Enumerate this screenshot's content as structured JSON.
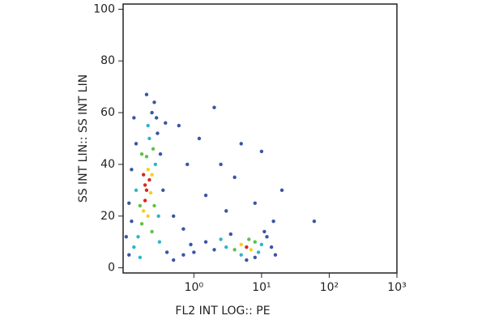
{
  "chart_data": {
    "type": "scatter",
    "xlabel": "FL2 INT LOG:: PE",
    "ylabel": "SS INT LIN:: SS INT LIN",
    "xscale": "log",
    "xlim": [
      0.09,
      1000
    ],
    "ylim": [
      -2,
      102
    ],
    "xticks": [
      {
        "value": 1,
        "label": "10⁰"
      },
      {
        "value": 10,
        "label": "10¹"
      },
      {
        "value": 100,
        "label": "10²"
      },
      {
        "value": 1000,
        "label": "10³"
      }
    ],
    "yticks": [
      0,
      20,
      40,
      60,
      80,
      100
    ],
    "x": [
      0.2,
      0.22,
      0.19,
      0.21,
      0.18,
      0.23,
      0.2,
      0.17,
      0.24,
      0.19,
      0.25,
      0.16,
      0.22,
      0.15,
      0.27,
      0.14,
      0.21,
      0.13,
      0.29,
      0.12,
      0.24,
      0.11,
      0.32,
      0.12,
      0.26,
      0.1,
      0.35,
      0.14,
      0.3,
      0.17,
      0.26,
      0.18,
      0.21,
      0.16,
      0.4,
      0.5,
      0.7,
      0.28,
      0.2,
      0.13,
      0.11,
      0.38,
      0.31,
      0.24,
      6,
      5,
      7,
      8,
      4,
      6.5,
      3,
      10,
      5,
      9,
      2,
      1.5,
      12,
      14,
      3.5,
      8,
      1,
      16,
      2.5,
      11,
      0.9,
      6,
      1.2,
      2,
      0.8,
      4,
      10,
      20,
      3,
      1.5,
      0.6,
      8,
      60,
      0.5,
      5,
      15,
      0.7,
      2.5
    ],
    "y": [
      30,
      34,
      26,
      38,
      22,
      29,
      43,
      17,
      36,
      32,
      46,
      24,
      50,
      12,
      40,
      30,
      55,
      8,
      52,
      18,
      60,
      5,
      44,
      38,
      64,
      12,
      30,
      48,
      20,
      44,
      24,
      36,
      20,
      4,
      6,
      3,
      5,
      58,
      67,
      58,
      25,
      56,
      10,
      14,
      8,
      9,
      7,
      10,
      7,
      11,
      8,
      9,
      5,
      6,
      7,
      10,
      12,
      8,
      13,
      4,
      6,
      5,
      11,
      14,
      9,
      3,
      50,
      62,
      40,
      35,
      45,
      30,
      22,
      28,
      55,
      25,
      18,
      20,
      48,
      18,
      15,
      40
    ],
    "colors": [
      "#d62a1e",
      "#d62a1e",
      "#d62a1e",
      "#f2d21c",
      "#f2d21c",
      "#f2d21c",
      "#5cc24a",
      "#5cc24a",
      "#f2d21c",
      "#d62a1e",
      "#5cc24a",
      "#5cc24a",
      "#2fb5c8",
      "#2fb5c8",
      "#2fb5c8",
      "#2fb5c8",
      "#2fb5c8",
      "#2fb5c8",
      "#3a55a4",
      "#3a55a4",
      "#3a55a4",
      "#3a55a4",
      "#3a55a4",
      "#3a55a4",
      "#3a55a4",
      "#3a55a4",
      "#3a55a4",
      "#3a55a4",
      "#2fb5c8",
      "#5cc24a",
      "#5cc24a",
      "#d62a1e",
      "#f2d21c",
      "#2fb5c8",
      "#3a55a4",
      "#3a55a4",
      "#3a55a4",
      "#3a55a4",
      "#3a55a4",
      "#3a55a4",
      "#3a55a4",
      "#3a55a4",
      "#2fb5c8",
      "#5cc24a",
      "#d62a1e",
      "#f2d21c",
      "#f2d21c",
      "#5cc24a",
      "#5cc24a",
      "#5cc24a",
      "#2fb5c8",
      "#2fb5c8",
      "#2fb5c8",
      "#2fb5c8",
      "#3a55a4",
      "#3a55a4",
      "#3a55a4",
      "#3a55a4",
      "#3a55a4",
      "#3a55a4",
      "#3a55a4",
      "#3a55a4",
      "#2fb5c8",
      "#3a55a4",
      "#3a55a4",
      "#3a55a4",
      "#3a55a4",
      "#3a55a4",
      "#3a55a4",
      "#3a55a4",
      "#3a55a4",
      "#3a55a4",
      "#3a55a4",
      "#3a55a4",
      "#3a55a4",
      "#3a55a4",
      "#3a55a4",
      "#3a55a4",
      "#3a55a4",
      "#3a55a4",
      "#3a55a4",
      "#3a55a4"
    ]
  }
}
